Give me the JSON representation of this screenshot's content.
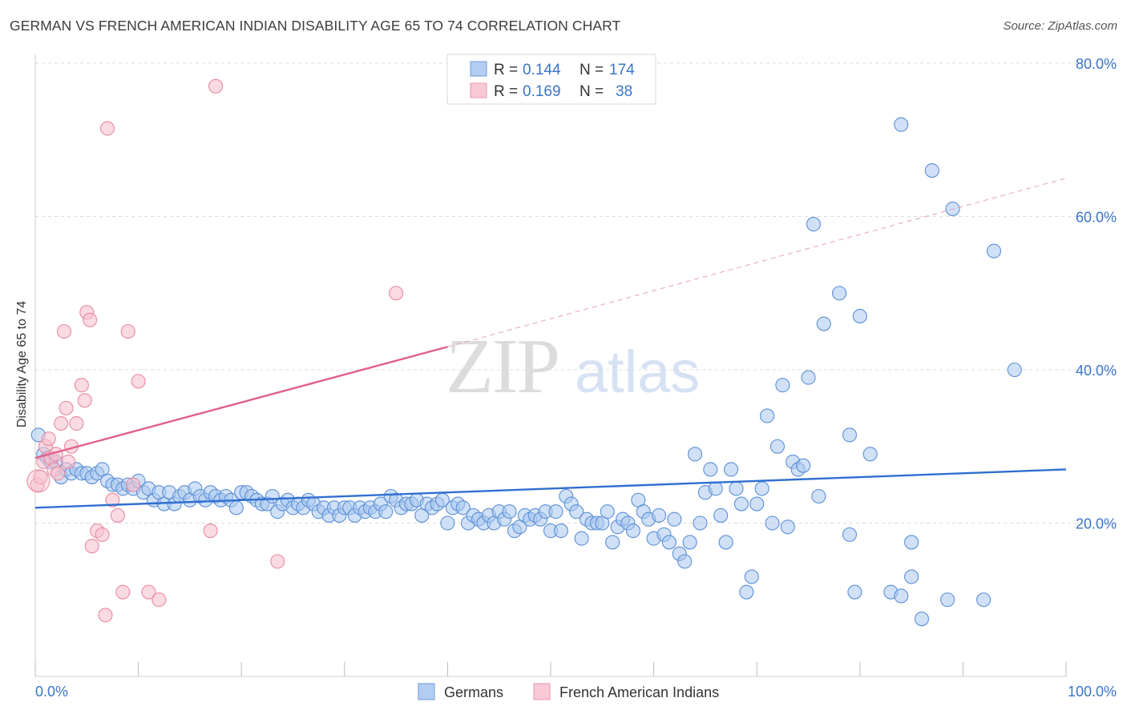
{
  "chart_data": {
    "type": "scatter",
    "title": "GERMAN VS FRENCH AMERICAN INDIAN DISABILITY AGE 65 TO 74 CORRELATION CHART",
    "source": "Source: ZipAtlas.com",
    "xlabel": "",
    "ylabel": "Disability Age 65 to 74",
    "xlim": [
      0,
      100
    ],
    "ylim": [
      0,
      80
    ],
    "x_tick_labels": [
      "0.0%",
      "100.0%"
    ],
    "y_ticks": [
      20,
      40,
      60,
      80
    ],
    "y_tick_labels": [
      "20.0%",
      "40.0%",
      "60.0%",
      "80.0%"
    ],
    "grid": true,
    "watermark": "ZIPatlas",
    "legend": {
      "placement": "top-center",
      "entries": [
        {
          "r_label": "R =",
          "r": "0.144",
          "n_label": "N =",
          "n": "174"
        },
        {
          "r_label": "R =",
          "r": "0.169",
          "n_label": "N =",
          "n": "38"
        }
      ]
    },
    "series": [
      {
        "name": "Germans",
        "color": "#a9c8f0",
        "stroke": "#5b8fd6",
        "trend_color": "#2f6fd0",
        "trend": {
          "x": [
            0,
            100
          ],
          "y": [
            22.0,
            27.0
          ]
        },
        "points": [
          [
            0.3,
            31.5
          ],
          [
            0.8,
            29
          ],
          [
            1.2,
            28.5
          ],
          [
            1.5,
            28
          ],
          [
            2,
            28
          ],
          [
            2.5,
            26
          ],
          [
            3,
            27
          ],
          [
            3.5,
            26.5
          ],
          [
            4,
            27
          ],
          [
            4.5,
            26.5
          ],
          [
            5,
            26.5
          ],
          [
            5.5,
            26
          ],
          [
            6,
            26.5
          ],
          [
            6.5,
            27
          ],
          [
            7,
            25.5
          ],
          [
            7.5,
            25
          ],
          [
            8,
            25
          ],
          [
            8.5,
            24.5
          ],
          [
            9,
            25
          ],
          [
            9.5,
            24.5
          ],
          [
            10,
            25.5
          ],
          [
            10.5,
            24
          ],
          [
            11,
            24.5
          ],
          [
            11.5,
            23
          ],
          [
            12,
            24
          ],
          [
            12.5,
            22.5
          ],
          [
            13,
            24
          ],
          [
            13.5,
            22.5
          ],
          [
            14,
            23.5
          ],
          [
            14.5,
            24
          ],
          [
            15,
            23
          ],
          [
            15.5,
            24.5
          ],
          [
            16,
            23.5
          ],
          [
            16.5,
            23
          ],
          [
            17,
            24
          ],
          [
            17.5,
            23.5
          ],
          [
            18,
            23
          ],
          [
            18.5,
            23.5
          ],
          [
            19,
            23
          ],
          [
            19.5,
            22
          ],
          [
            20,
            24
          ],
          [
            20.5,
            24
          ],
          [
            21,
            23.5
          ],
          [
            21.5,
            23
          ],
          [
            22,
            22.5
          ],
          [
            22.5,
            22.5
          ],
          [
            23,
            23.5
          ],
          [
            23.5,
            21.5
          ],
          [
            24,
            22.5
          ],
          [
            24.5,
            23
          ],
          [
            25,
            22
          ],
          [
            25.5,
            22.5
          ],
          [
            26,
            22
          ],
          [
            26.5,
            23
          ],
          [
            27,
            22.5
          ],
          [
            27.5,
            21.5
          ],
          [
            28,
            22
          ],
          [
            28.5,
            21
          ],
          [
            29,
            22
          ],
          [
            29.5,
            21
          ],
          [
            30,
            22
          ],
          [
            30.5,
            22
          ],
          [
            31,
            21
          ],
          [
            31.5,
            22
          ],
          [
            32,
            21.5
          ],
          [
            32.5,
            22
          ],
          [
            33,
            21.5
          ],
          [
            33.5,
            22.5
          ],
          [
            34,
            21.5
          ],
          [
            34.5,
            23.5
          ],
          [
            35,
            23
          ],
          [
            35.5,
            22
          ],
          [
            36,
            22.5
          ],
          [
            36.5,
            22.5
          ],
          [
            37,
            23
          ],
          [
            37.5,
            21
          ],
          [
            38,
            22.5
          ],
          [
            38.5,
            22
          ],
          [
            39,
            22.5
          ],
          [
            39.5,
            23
          ],
          [
            40,
            20
          ],
          [
            40.5,
            22
          ],
          [
            41,
            22.5
          ],
          [
            41.5,
            22
          ],
          [
            42,
            20
          ],
          [
            42.5,
            21
          ],
          [
            43,
            20.5
          ],
          [
            43.5,
            20
          ],
          [
            44,
            21
          ],
          [
            44.5,
            20
          ],
          [
            45,
            21.5
          ],
          [
            45.5,
            20.5
          ],
          [
            46,
            21.5
          ],
          [
            46.5,
            19
          ],
          [
            47,
            19.5
          ],
          [
            47.5,
            21
          ],
          [
            48,
            20.5
          ],
          [
            48.5,
            21
          ],
          [
            49,
            20.5
          ],
          [
            49.5,
            21.5
          ],
          [
            50,
            19
          ],
          [
            50.5,
            21.5
          ],
          [
            51,
            19
          ],
          [
            51.5,
            23.5
          ],
          [
            52,
            22.5
          ],
          [
            52.5,
            21.5
          ],
          [
            53,
            18
          ],
          [
            53.5,
            20.5
          ],
          [
            54,
            20
          ],
          [
            54.5,
            20
          ],
          [
            55,
            20
          ],
          [
            55.5,
            21.5
          ],
          [
            56,
            17.5
          ],
          [
            56.5,
            19.5
          ],
          [
            57,
            20.5
          ],
          [
            57.5,
            20
          ],
          [
            58,
            19
          ],
          [
            58.5,
            23
          ],
          [
            59,
            21.5
          ],
          [
            59.5,
            20.5
          ],
          [
            60,
            18
          ],
          [
            60.5,
            21
          ],
          [
            61,
            18.5
          ],
          [
            61.5,
            17.5
          ],
          [
            62,
            20.5
          ],
          [
            62.5,
            16
          ],
          [
            63,
            15
          ],
          [
            63.5,
            17.5
          ],
          [
            64,
            29
          ],
          [
            64.5,
            20
          ],
          [
            65,
            24
          ],
          [
            65.5,
            27
          ],
          [
            66,
            24.5
          ],
          [
            66.5,
            21
          ],
          [
            67,
            17.5
          ],
          [
            67.5,
            27
          ],
          [
            68,
            24.5
          ],
          [
            68.5,
            22.5
          ],
          [
            69,
            11
          ],
          [
            69.5,
            13
          ],
          [
            70,
            22.5
          ],
          [
            70.5,
            24.5
          ],
          [
            71,
            34
          ],
          [
            71.5,
            20
          ],
          [
            72,
            30
          ],
          [
            72.5,
            38
          ],
          [
            73,
            19.5
          ],
          [
            73.5,
            28
          ],
          [
            74,
            27
          ],
          [
            74.5,
            27.5
          ],
          [
            75,
            39
          ],
          [
            75.5,
            59
          ],
          [
            76,
            23.5
          ],
          [
            76.5,
            46
          ],
          [
            78,
            50
          ],
          [
            79,
            31.5
          ],
          [
            79,
            18.5
          ],
          [
            79.5,
            11
          ],
          [
            80,
            47
          ],
          [
            81,
            29
          ],
          [
            83,
            11
          ],
          [
            84,
            72
          ],
          [
            84,
            10.5
          ],
          [
            85,
            13
          ],
          [
            85,
            17.5
          ],
          [
            86,
            7.5
          ],
          [
            87,
            66
          ],
          [
            88.5,
            10
          ],
          [
            89,
            61
          ],
          [
            92,
            10
          ],
          [
            93,
            55.5
          ],
          [
            95,
            40
          ]
        ]
      },
      {
        "name": "French American Indians",
        "color": "#f7c1d0",
        "stroke": "#e8899f",
        "trend_color": "#e0608a",
        "trend": {
          "x": [
            0,
            40
          ],
          "y": [
            28.5,
            43
          ]
        },
        "trend_ext": {
          "x": [
            40,
            100
          ],
          "y": [
            43,
            65
          ]
        },
        "points": [
          [
            0.2,
            25
          ],
          [
            0.5,
            26
          ],
          [
            0.8,
            28
          ],
          [
            1,
            30
          ],
          [
            1.3,
            31
          ],
          [
            1.5,
            28.5
          ],
          [
            1.8,
            27
          ],
          [
            2,
            29
          ],
          [
            2.2,
            26.5
          ],
          [
            2.5,
            33
          ],
          [
            2.8,
            45
          ],
          [
            3,
            35
          ],
          [
            3.2,
            28
          ],
          [
            3.5,
            30
          ],
          [
            4,
            33
          ],
          [
            4.5,
            38
          ],
          [
            4.8,
            36
          ],
          [
            5,
            47.5
          ],
          [
            5.3,
            46.5
          ],
          [
            5.5,
            17
          ],
          [
            6,
            19
          ],
          [
            6.5,
            18.5
          ],
          [
            6.8,
            8
          ],
          [
            7,
            71.5
          ],
          [
            7.5,
            23
          ],
          [
            8,
            21
          ],
          [
            8.5,
            11
          ],
          [
            9,
            45
          ],
          [
            9.5,
            25
          ],
          [
            10,
            38.5
          ],
          [
            11,
            11
          ],
          [
            12,
            10
          ],
          [
            17,
            19
          ],
          [
            17.5,
            77
          ],
          [
            23.5,
            15
          ],
          [
            35,
            50
          ]
        ]
      }
    ],
    "bottom_legend": [
      "Germans",
      "French American Indians"
    ]
  }
}
